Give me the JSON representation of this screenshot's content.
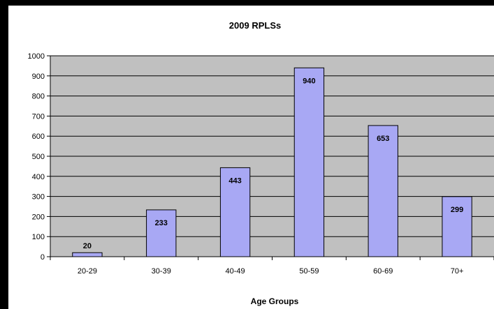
{
  "chart_data": {
    "type": "bar",
    "title": "2009 RPLSs",
    "xlabel": "Age Groups",
    "ylabel": "",
    "categories": [
      "20-29",
      "30-39",
      "40-49",
      "50-59",
      "60-69",
      "70+"
    ],
    "values": [
      20,
      233,
      443,
      940,
      653,
      299
    ],
    "ylim": [
      0,
      1000
    ],
    "yticks": [
      0,
      100,
      200,
      300,
      400,
      500,
      600,
      700,
      800,
      900,
      1000
    ],
    "grid": true,
    "legend": "none",
    "colors": {
      "bar_fill": "#a8a8f4",
      "bar_stroke": "#000000",
      "plot_background": "#c0c0c0",
      "gridline": "#000000",
      "page_background": "#ffffff",
      "frame": "#000000"
    }
  }
}
